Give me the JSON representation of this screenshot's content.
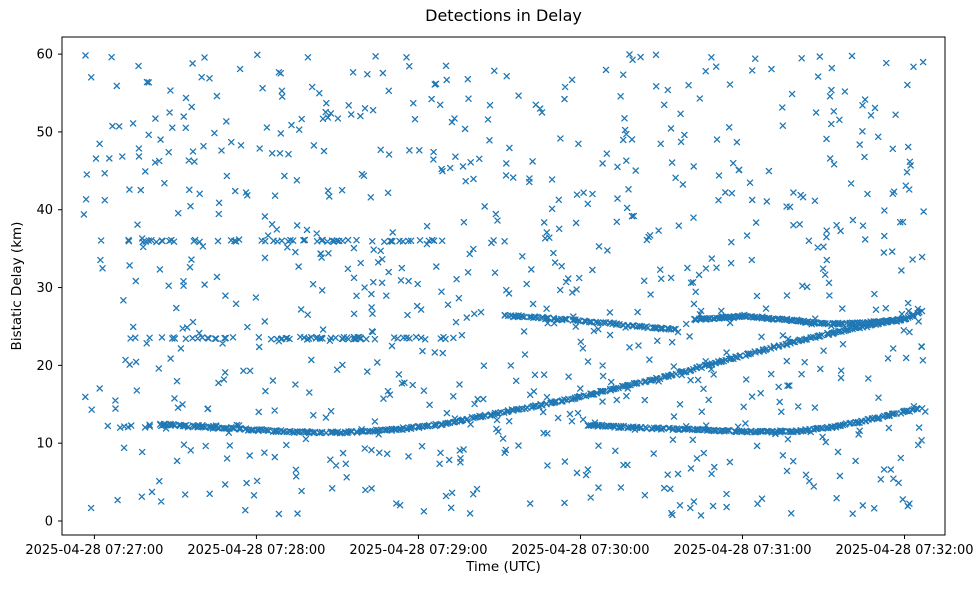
{
  "chart_data": {
    "type": "scatter",
    "title": "Detections in Delay",
    "xlabel": "Time (UTC)",
    "ylabel": "Bistatic Delay (km)",
    "marker": "x",
    "marker_color": "#1f77b4",
    "seed": 42,
    "xlim_seconds": [
      -12,
      315
    ],
    "ylim": [
      -1.8,
      62.2
    ],
    "x_ticks": [
      {
        "t": 0,
        "label": "2025-04-28 07:27:00"
      },
      {
        "t": 60,
        "label": "2025-04-28 07:28:00"
      },
      {
        "t": 120,
        "label": "2025-04-28 07:29:00"
      },
      {
        "t": 180,
        "label": "2025-04-28 07:30:00"
      },
      {
        "t": 240,
        "label": "2025-04-28 07:31:00"
      },
      {
        "t": 300,
        "label": "2025-04-28 07:32:00"
      }
    ],
    "y_ticks": [
      0,
      10,
      20,
      30,
      40,
      50,
      60
    ],
    "series": [
      {
        "name": "background-noise",
        "kind": "uniform",
        "count": 800,
        "t": [
          -4,
          308
        ],
        "y": [
          0.5,
          60.0
        ]
      },
      {
        "name": "rfi-band-36km",
        "kind": "band",
        "count": 55,
        "t": [
          8,
          128
        ],
        "y": 36.0,
        "jitter": 0.18
      },
      {
        "name": "rfi-band-23-5km",
        "kind": "band",
        "count": 62,
        "t": [
          12,
          135
        ],
        "y": 23.5,
        "jitter": 0.18
      },
      {
        "name": "band-12km-early",
        "kind": "band",
        "count": 22,
        "t": [
          2,
          55
        ],
        "y": 12.2,
        "jitter": 0.25
      },
      {
        "name": "track-main-rising",
        "kind": "track",
        "count": 430,
        "jitter": 0.16,
        "points": [
          [
            25,
            12.4
          ],
          [
            45,
            12.0
          ],
          [
            70,
            11.5
          ],
          [
            90,
            11.35
          ],
          [
            110,
            11.7
          ],
          [
            130,
            12.5
          ],
          [
            150,
            13.9
          ],
          [
            170,
            15.2
          ],
          [
            190,
            16.8
          ],
          [
            210,
            18.4
          ],
          [
            230,
            20.3
          ],
          [
            250,
            22.2
          ],
          [
            270,
            23.9
          ],
          [
            285,
            25.0
          ],
          [
            300,
            26.0
          ]
        ]
      },
      {
        "name": "track-26km-a",
        "kind": "track",
        "count": 90,
        "jitter": 0.15,
        "points": [
          [
            152,
            26.4
          ],
          [
            170,
            26.0
          ],
          [
            188,
            25.5
          ],
          [
            205,
            24.9
          ],
          [
            215,
            24.6
          ]
        ]
      },
      {
        "name": "track-26km-b",
        "kind": "track",
        "count": 170,
        "jitter": 0.15,
        "points": [
          [
            222,
            25.9
          ],
          [
            240,
            26.3
          ],
          [
            258,
            25.8
          ],
          [
            272,
            25.3
          ],
          [
            288,
            25.5
          ],
          [
            300,
            25.9
          ],
          [
            306,
            26.9
          ]
        ]
      },
      {
        "name": "track-12km-late",
        "kind": "track",
        "count": 210,
        "jitter": 0.15,
        "points": [
          [
            183,
            12.3
          ],
          [
            200,
            12.0
          ],
          [
            220,
            11.8
          ],
          [
            240,
            11.5
          ],
          [
            258,
            11.5
          ],
          [
            272,
            12.0
          ],
          [
            286,
            12.9
          ],
          [
            298,
            13.9
          ],
          [
            306,
            14.5
          ]
        ]
      }
    ]
  }
}
